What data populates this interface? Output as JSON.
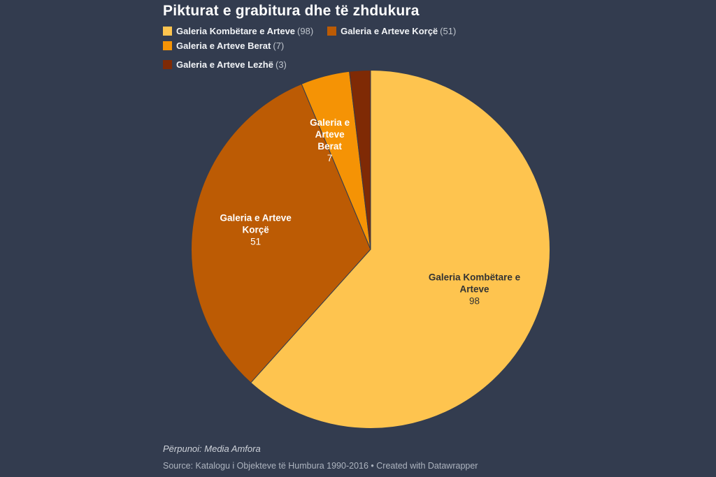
{
  "footer": {
    "byline": "Përpunoi: Media Amfora",
    "source": "Source: Katalogu i Objekteve të Humbura 1990-2016 • Created with Datawrapper"
  },
  "colors": {
    "background": "#333c4f",
    "title_text": "#ffffff",
    "legend_label": "#f2f4f7",
    "legend_count": "#bfc5cd",
    "byline_text": "#cfd3da",
    "source_text": "#adb4bf"
  },
  "chart_data": {
    "type": "pie",
    "title": "Pikturat e grabitura dhe të zhdukura",
    "total": 159,
    "start_angle_deg": 0,
    "direction": "clockwise",
    "legend_position": "top",
    "legend_break_after_index": 2,
    "slices": [
      {
        "label": "Galeria Kombëtare e Arteve",
        "value": 98,
        "color": "#fec44f",
        "legend_count_text": "(98)",
        "label_lines": [
          "Galeria Kombëtare e",
          "Arteve"
        ],
        "label_value_text": "98",
        "label_text_color": "#333333",
        "label_rf": 0.62
      },
      {
        "label": "Galeria e Arteve Korçë",
        "value": 51,
        "color": "#bc5b04",
        "legend_count_text": "(51)",
        "label_lines": [
          "Galeria e Arteve",
          "Korçë"
        ],
        "label_value_text": "51",
        "label_text_color": "#ffffff",
        "label_rf": 0.65
      },
      {
        "label": "Galeria e Arteve Berat",
        "value": 7,
        "color": "#f59305",
        "legend_count_text": "(7)",
        "label_lines": [
          "Galeria e",
          "Arteve",
          "Berat"
        ],
        "label_value_text": "7",
        "label_text_color": "#ffffff",
        "label_rf": 0.65,
        "label_angle_deg": 339.5
      },
      {
        "label": "Galeria e Arteve Lezhë",
        "value": 3,
        "color": "#7f2a05",
        "legend_count_text": "(3)",
        "label_lines": [],
        "label_value_text": "",
        "label_text_color": "",
        "label_rf": null
      }
    ]
  }
}
